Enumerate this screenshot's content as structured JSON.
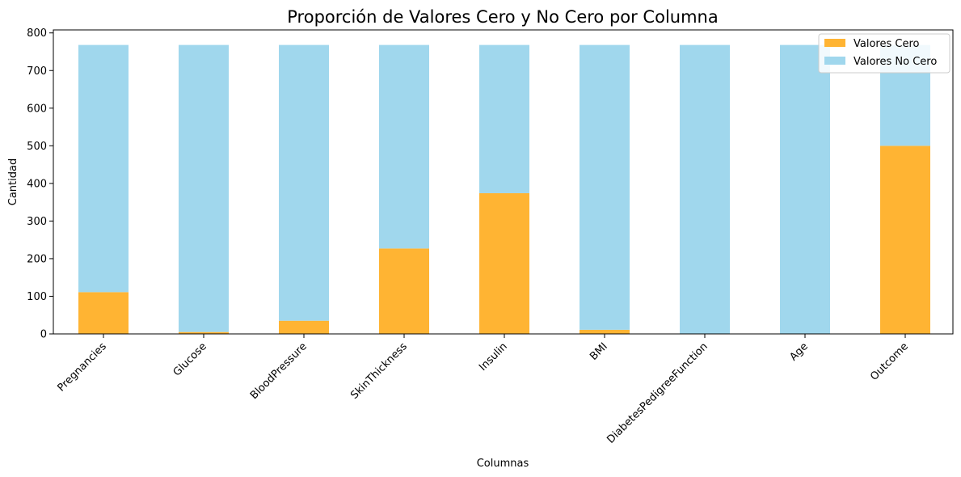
{
  "chart_data": {
    "type": "bar",
    "stacked": true,
    "title": "Proporción de Valores Cero y No Cero por Columna",
    "xlabel": "Columnas",
    "ylabel": "Cantidad",
    "ylim": [
      0,
      808
    ],
    "yticks": [
      0,
      100,
      200,
      300,
      400,
      500,
      600,
      700,
      800
    ],
    "categories": [
      "Pregnancies",
      "Glucose",
      "BloodPressure",
      "SkinThickness",
      "Insulin",
      "BMI",
      "DiabetesPedigreeFunction",
      "Age",
      "Outcome"
    ],
    "series": [
      {
        "name": "Valores Cero",
        "color": "#FFB433",
        "values": [
          111,
          5,
          35,
          227,
          374,
          11,
          0,
          0,
          500
        ]
      },
      {
        "name": "Valores No Cero",
        "color": "#A0D7ED",
        "values": [
          657,
          763,
          733,
          541,
          394,
          757,
          768,
          768,
          268
        ]
      }
    ],
    "grid": false,
    "legend": "top-right"
  }
}
